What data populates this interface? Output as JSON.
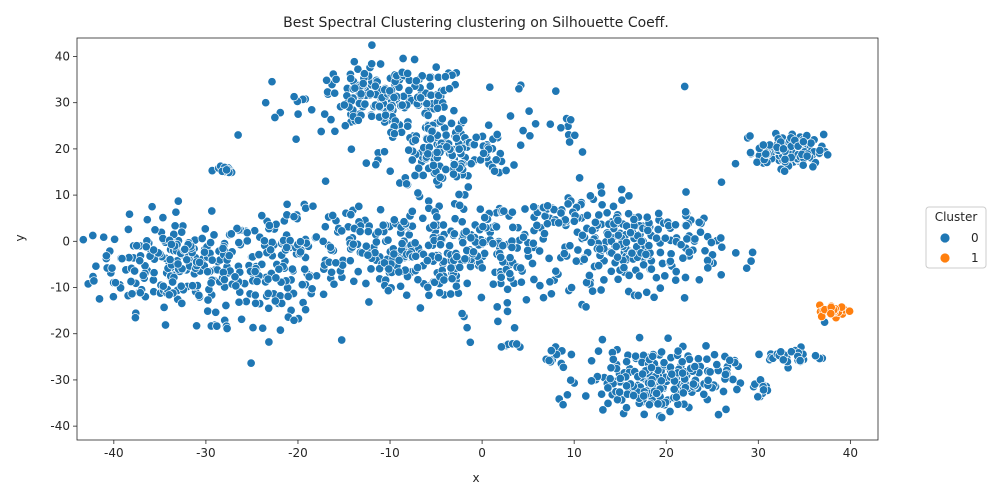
{
  "chart_data": {
    "type": "scatter",
    "title": "Best Spectral Clustering clustering on Silhouette Coeff.",
    "xlabel": "x",
    "ylabel": "y",
    "xlim": [
      -44,
      43
    ],
    "ylim": [
      -43,
      44
    ],
    "xticks": [
      -40,
      -30,
      -20,
      -10,
      0,
      10,
      20,
      30,
      40
    ],
    "yticks": [
      -40,
      -30,
      -20,
      -10,
      0,
      10,
      20,
      30,
      40
    ],
    "grid": false,
    "legend": {
      "title": "Cluster",
      "placement": "right",
      "entries": [
        "0",
        "1"
      ]
    },
    "colors": {
      "cluster_0": "#1f77b4",
      "cluster_1": "#ff7f0e"
    },
    "series": [
      {
        "name": "0",
        "clusters": [
          {
            "cx": -33,
            "cy": -5,
            "sx": 4.5,
            "sy": 5,
            "n": 230
          },
          {
            "cx": -22,
            "cy": -6,
            "sx": 3,
            "sy": 6,
            "n": 110
          },
          {
            "cx": -10,
            "cy": 31,
            "sx": 4.5,
            "sy": 3.5,
            "n": 200
          },
          {
            "cx": -4,
            "cy": 19,
            "sx": 3.5,
            "sy": 4,
            "n": 160
          },
          {
            "cx": -10,
            "cy": -2,
            "sx": 5,
            "sy": 5,
            "n": 200
          },
          {
            "cx": 1,
            "cy": -3,
            "sx": 5,
            "sy": 6,
            "n": 150
          },
          {
            "cx": 17,
            "cy": -1,
            "sx": 4.5,
            "sy": 4.5,
            "n": 220
          },
          {
            "cx": 8,
            "cy": 5,
            "sx": 3,
            "sy": 3,
            "n": 40
          },
          {
            "cx": 19,
            "cy": -30,
            "sx": 4,
            "sy": 3.5,
            "n": 240
          },
          {
            "cx": 33.5,
            "cy": 19.5,
            "sx": 1.8,
            "sy": 1.8,
            "n": 120
          },
          {
            "cx": 34,
            "cy": -25,
            "sx": 1.5,
            "sy": 1,
            "n": 30
          },
          {
            "cx": -28.5,
            "cy": 15.5,
            "sx": 1,
            "sy": 0.6,
            "n": 12
          },
          {
            "cx": 7.5,
            "cy": 25,
            "sx": 3,
            "sy": 3,
            "n": 12
          },
          {
            "cx": 3,
            "cy": -22,
            "sx": 0.8,
            "sy": 0.5,
            "n": 6
          },
          {
            "cx": 8,
            "cy": -25,
            "sx": 1,
            "sy": 2,
            "n": 10
          },
          {
            "cx": 30.5,
            "cy": -32,
            "sx": 0.5,
            "sy": 1.2,
            "n": 8
          },
          {
            "cx": -29,
            "cy": -18.5,
            "sx": 1,
            "sy": 0.4,
            "n": 6
          }
        ],
        "points": [
          [
            -40.2,
            -5.8
          ],
          [
            -33,
            8.7
          ],
          [
            -26.5,
            23
          ],
          [
            -23.5,
            30
          ],
          [
            -22.5,
            26.8
          ],
          [
            26,
            12.8
          ],
          [
            9.5,
            21.5
          ],
          [
            4,
            33
          ],
          [
            8,
            32.5
          ],
          [
            -17,
            13
          ],
          [
            22,
            33.5
          ],
          [
            37.2,
            -17.5
          ]
        ]
      },
      {
        "name": "1",
        "clusters": [
          {
            "cx": 38.2,
            "cy": -15,
            "sx": 0.8,
            "sy": 0.6,
            "n": 28
          }
        ],
        "points": []
      }
    ]
  }
}
